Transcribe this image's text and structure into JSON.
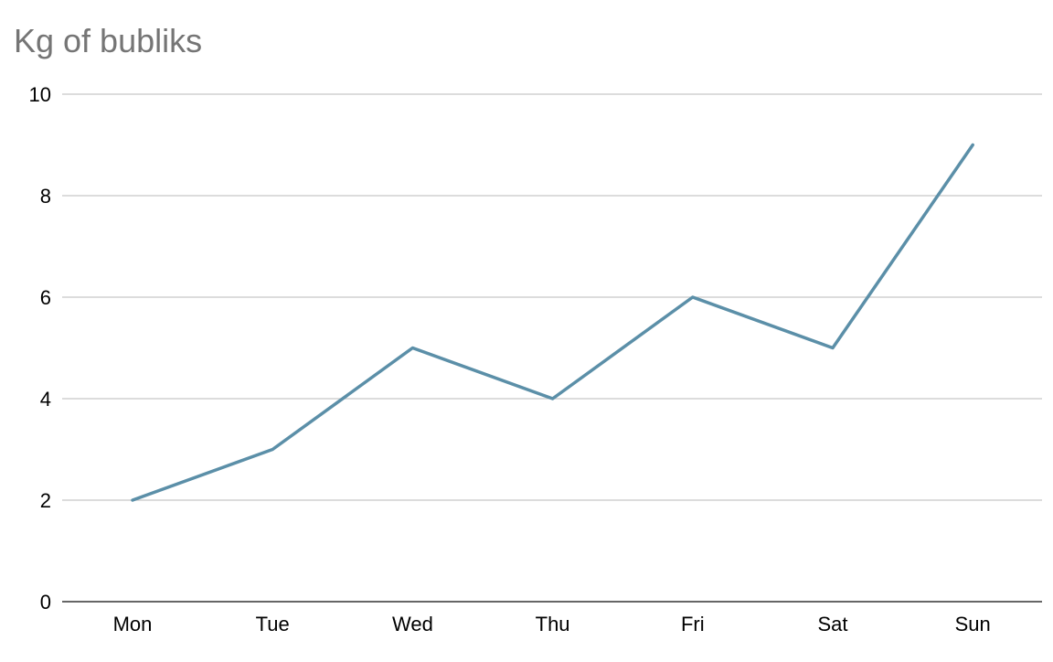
{
  "chart_data": {
    "type": "line",
    "title": "Kg of bubliks",
    "xlabel": "",
    "ylabel": "",
    "categories": [
      "Mon",
      "Tue",
      "Wed",
      "Thu",
      "Fri",
      "Sat",
      "Sun"
    ],
    "series": [
      {
        "values": [
          2,
          3,
          5,
          4,
          6,
          5,
          9
        ],
        "color": "#5b8fa8"
      }
    ],
    "ylim": [
      0,
      10
    ],
    "yticks": [
      0,
      2,
      4,
      6,
      8,
      10
    ],
    "grid": true,
    "legend": "none",
    "colors": {
      "title": "#757575",
      "gridline": "#c8c8c8",
      "baseline": "#333333",
      "tick_text": "#000000"
    }
  }
}
